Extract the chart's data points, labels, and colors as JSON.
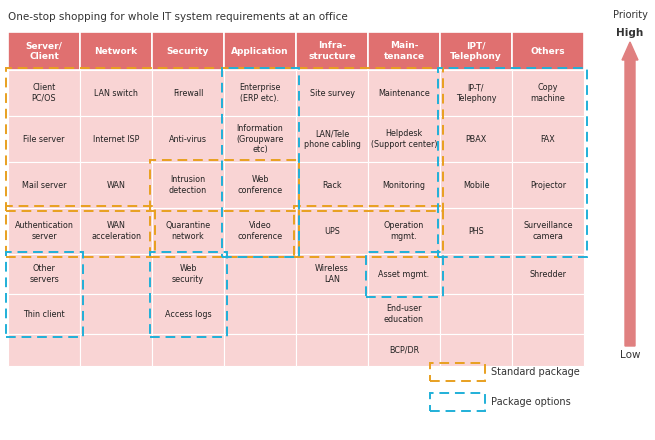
{
  "title": "One-stop shopping for whole IT system requirements at an office",
  "bg_color": "#f9d4d4",
  "header_color": "#e07070",
  "header_text_color": "#ffffff",
  "cell_text_color": "#222222",
  "grid_line_color": "#ffffff",
  "orange_dash": "#e8a020",
  "blue_dash": "#20b0d8",
  "arrow_color": "#e08080",
  "headers": [
    "Server/\nClient",
    "Network",
    "Security",
    "Application",
    "Infra-\nstructure",
    "Main-\ntenance",
    "IPT/\nTelephony",
    "Others"
  ],
  "rows": [
    [
      "Client\nPC/OS",
      "LAN switch",
      "Firewall",
      "Enterprise\n(ERP etc).",
      "Site survey",
      "Maintenance",
      "IP-T/\nTelephony",
      "Copy\nmachine"
    ],
    [
      "File server",
      "Internet ISP",
      "Anti-virus",
      "Information\n(Groupware\netc)",
      "LAN/Tele\nphone cabling",
      "Helpdesk\n(Support center)",
      "PBAX",
      "FAX"
    ],
    [
      "Mail server",
      "WAN",
      "Intrusion\ndetection",
      "Web\nconference",
      "Rack",
      "Monitoring",
      "Mobile",
      "Projector"
    ],
    [
      "Authentication\nserver",
      "WAN\nacceleration",
      "Quarantine\nnetwork",
      "Video\nconference",
      "UPS",
      "Operation\nmgmt.",
      "PHS",
      "Surveillance\ncamera"
    ],
    [
      "Other\nservers",
      "",
      "Web\nsecurity",
      "",
      "Wireless\nLAN",
      "Asset mgmt.",
      "",
      "Shredder"
    ],
    [
      "Thin client",
      "",
      "Access logs",
      "",
      "",
      "End-user\neducation",
      "",
      ""
    ],
    [
      "",
      "",
      "",
      "",
      "",
      "BCP/DR",
      "",
      ""
    ]
  ],
  "legend_standard": "Standard package",
  "legend_options": "Package options"
}
